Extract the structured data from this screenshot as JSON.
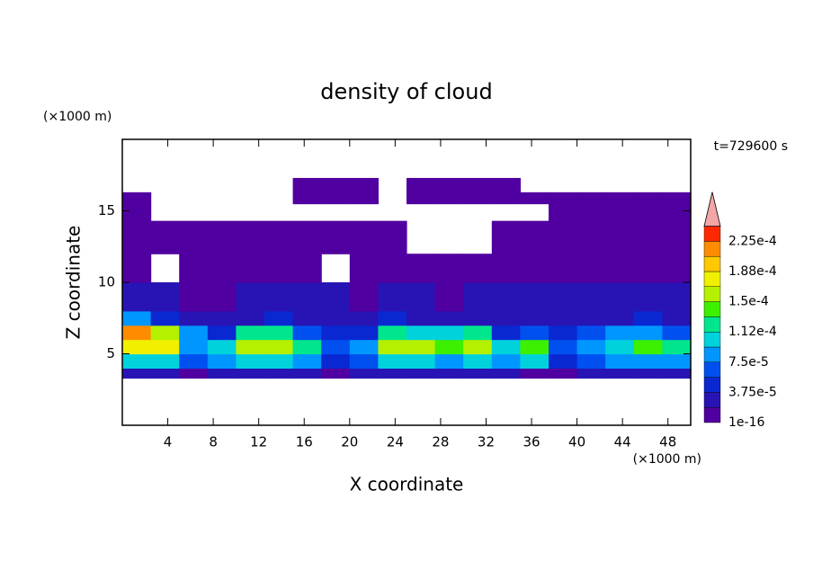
{
  "chart_data": {
    "type": "contour",
    "title": "density of cloud",
    "x_label": "X coordinate",
    "y_label": "Z coordinate",
    "x_unit": "(×1000 m)",
    "y_unit": "(×1000 m)",
    "annotation": "t=729600 s",
    "xlim": [
      0,
      50
    ],
    "ylim": [
      0,
      20
    ],
    "xticks": [
      4,
      8,
      12,
      16,
      20,
      24,
      28,
      32,
      36,
      40,
      44,
      48
    ],
    "yticks": [
      5,
      10,
      15
    ],
    "x_edges": [
      0,
      2.5,
      5,
      7.5,
      10,
      12.5,
      15,
      17.5,
      20,
      22.5,
      25,
      27.5,
      30,
      32.5,
      35,
      37.5,
      40,
      42.5,
      45,
      47.5,
      50
    ],
    "z_edges": [
      3.3,
      4,
      5,
      6,
      7,
      8,
      10,
      12,
      14.3,
      15.5,
      16.3,
      17.3
    ],
    "values": [
      [
        2e-05,
        2e-05,
        1e-05,
        2e-05,
        2e-05,
        2e-05,
        2e-05,
        1e-05,
        2e-05,
        2e-05,
        2e-05,
        2e-05,
        2e-05,
        2e-05,
        1e-05,
        1e-05,
        2e-05,
        2e-05,
        2e-05,
        2e-05
      ],
      [
        0.0001,
        0.0001,
        6e-05,
        8e-05,
        0.0001,
        0.0001,
        8e-05,
        5e-05,
        7e-05,
        0.0001,
        0.0001,
        8e-05,
        0.0001,
        8e-05,
        0.0001,
        5e-05,
        7e-05,
        8e-05,
        9e-05,
        8e-05
      ],
      [
        0.00017,
        0.00017,
        8e-05,
        0.0001,
        0.00016,
        0.00016,
        0.00012,
        6e-05,
        9e-05,
        0.00015,
        0.00015,
        0.00014,
        0.00016,
        0.0001,
        0.00014,
        6e-05,
        8e-05,
        0.00011,
        0.00014,
        0.00012
      ],
      [
        0.00021,
        0.00016,
        9e-05,
        5e-05,
        0.00012,
        0.00013,
        7e-05,
        4e-05,
        5e-05,
        0.00012,
        0.0001,
        0.0001,
        0.00012,
        5e-05,
        6e-05,
        4e-05,
        6e-05,
        8e-05,
        9e-05,
        7e-05
      ],
      [
        8e-05,
        5e-05,
        3e-05,
        3e-05,
        3e-05,
        4e-05,
        3e-05,
        2.5e-05,
        3e-05,
        4e-05,
        3e-05,
        3e-05,
        3e-05,
        2.5e-05,
        3e-05,
        2.5e-05,
        3e-05,
        3e-05,
        4e-05,
        3e-05
      ],
      [
        2e-05,
        2e-05,
        1e-05,
        1e-05,
        2e-05,
        2e-05,
        2e-05,
        2e-05,
        1e-05,
        2e-05,
        2e-05,
        1e-05,
        2e-05,
        2e-05,
        2e-05,
        2e-05,
        2e-05,
        2e-05,
        2e-05,
        2e-05
      ],
      [
        5e-06,
        null,
        5e-06,
        5e-06,
        5e-06,
        5e-06,
        5e-06,
        null,
        5e-06,
        5e-06,
        5e-06,
        5e-06,
        5e-06,
        5e-06,
        5e-06,
        5e-06,
        5e-06,
        5e-06,
        5e-06,
        5e-06
      ],
      [
        5e-06,
        5e-06,
        5e-06,
        5e-06,
        5e-06,
        5e-06,
        5e-06,
        5e-06,
        5e-06,
        5e-06,
        null,
        null,
        null,
        5e-06,
        5e-06,
        5e-06,
        5e-06,
        5e-06,
        5e-06,
        5e-06
      ],
      [
        5e-06,
        null,
        null,
        null,
        null,
        null,
        null,
        null,
        null,
        null,
        null,
        null,
        null,
        null,
        null,
        5e-06,
        5e-06,
        5e-06,
        5e-06,
        5e-06
      ],
      [
        5e-06,
        null,
        null,
        null,
        null,
        null,
        5e-06,
        5e-06,
        5e-06,
        null,
        5e-06,
        5e-06,
        5e-06,
        5e-06,
        5e-06,
        5e-06,
        5e-06,
        5e-06,
        5e-06,
        5e-06
      ],
      [
        null,
        null,
        null,
        null,
        null,
        null,
        5e-06,
        5e-06,
        5e-06,
        null,
        5e-06,
        5e-06,
        5e-06,
        5e-06,
        null,
        null,
        null,
        null,
        null,
        null
      ]
    ],
    "levels": [
      {
        "value": 1e-16,
        "label": "1e-16"
      },
      1.875e-05,
      {
        "value": 3.75e-05,
        "label": "3.75e-5"
      },
      5.625e-05,
      {
        "value": 7.5e-05,
        "label": "7.5e-5"
      },
      9.375e-05,
      {
        "value": 0.0001125,
        "label": "1.12e-4"
      },
      0.00013125,
      {
        "value": 0.00015,
        "label": "1.5e-4"
      },
      0.00016875,
      {
        "value": 0.0001875,
        "label": "1.88e-4"
      },
      0.00020625,
      {
        "value": 0.000225,
        "label": "2.25e-4"
      },
      0.00024375
    ],
    "colors": [
      "#5000a0",
      "#2814b4",
      "#0a28d2",
      "#0050f0",
      "#0096ff",
      "#00d2dc",
      "#00e68c",
      "#3cf000",
      "#b4f000",
      "#f0f000",
      "#ffc800",
      "#ff8c00",
      "#ff2800"
    ]
  }
}
